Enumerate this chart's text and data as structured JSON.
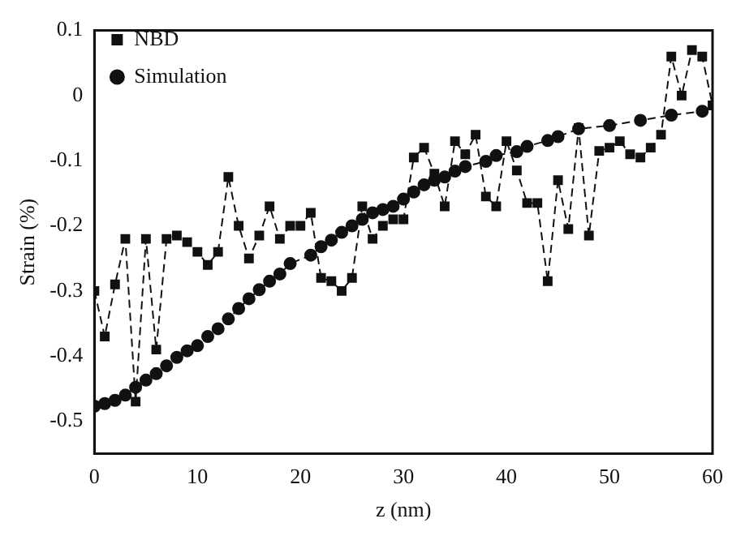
{
  "chart_data": {
    "type": "line",
    "xlabel": "z (nm)",
    "ylabel": "Strain (%)",
    "xlim": [
      0,
      60
    ],
    "xticks": [
      0,
      10,
      20,
      30,
      40,
      50,
      60
    ],
    "ylim": [
      -0.55,
      0.1
    ],
    "yticks": [
      -0.5,
      -0.4,
      -0.3,
      -0.2,
      -0.1,
      0,
      0.1
    ],
    "grid": false,
    "legend": "top left",
    "series": [
      {
        "name": "NBD",
        "color": "#111111",
        "marker": "square",
        "line_style": "dashed",
        "x": [
          0,
          1,
          2,
          3,
          4,
          5,
          6,
          7,
          8,
          9,
          10,
          11,
          12,
          13,
          14,
          15,
          16,
          17,
          18,
          19,
          20,
          21,
          22,
          23,
          24,
          25,
          26,
          27,
          28,
          29,
          30,
          31,
          32,
          33,
          34,
          35,
          36,
          37,
          38,
          39,
          40,
          41,
          42,
          43,
          44,
          45,
          46,
          47,
          48,
          49,
          50,
          51,
          52,
          53,
          54,
          55,
          56,
          57,
          58,
          59,
          60
        ],
        "values": [
          -0.3,
          -0.37,
          -0.29,
          -0.22,
          -0.47,
          -0.22,
          -0.39,
          -0.22,
          -0.215,
          -0.225,
          -0.24,
          -0.26,
          -0.24,
          -0.125,
          -0.2,
          -0.25,
          -0.215,
          -0.17,
          -0.22,
          -0.2,
          -0.2,
          -0.18,
          -0.28,
          -0.285,
          -0.3,
          -0.28,
          -0.17,
          -0.22,
          -0.2,
          -0.19,
          -0.19,
          -0.095,
          -0.08,
          -0.12,
          -0.17,
          -0.07,
          -0.09,
          -0.06,
          -0.155,
          -0.17,
          -0.07,
          -0.115,
          -0.165,
          -0.165,
          -0.285,
          -0.13,
          -0.205,
          -0.05,
          -0.215,
          -0.085,
          -0.08,
          -0.07,
          -0.09,
          -0.095,
          -0.08,
          -0.06,
          0.06,
          0,
          0.07,
          0.06,
          -0.015
        ]
      },
      {
        "name": "Simulation",
        "color": "#111111",
        "marker": "circle",
        "line_style": "dashed",
        "x": [
          0,
          1,
          2,
          3,
          4,
          5,
          6,
          7,
          8,
          9,
          10,
          11,
          12,
          13,
          14,
          15,
          16,
          17,
          18,
          19,
          21,
          22,
          23,
          24,
          25,
          26,
          27,
          28,
          29,
          30,
          31,
          32,
          33,
          34,
          35,
          36,
          38,
          39,
          41,
          42,
          44,
          45,
          47,
          50,
          53,
          56,
          59
        ],
        "values": [
          -0.477,
          -0.473,
          -0.468,
          -0.46,
          -0.448,
          -0.437,
          -0.427,
          -0.415,
          -0.402,
          -0.392,
          -0.384,
          -0.37,
          -0.358,
          -0.343,
          -0.327,
          -0.312,
          -0.298,
          -0.285,
          -0.274,
          -0.258,
          -0.245,
          -0.232,
          -0.222,
          -0.21,
          -0.2,
          -0.19,
          -0.18,
          -0.175,
          -0.17,
          -0.159,
          -0.148,
          -0.137,
          -0.13,
          -0.125,
          -0.116,
          -0.109,
          -0.101,
          -0.092,
          -0.086,
          -0.078,
          -0.069,
          -0.063,
          -0.051,
          -0.046,
          -0.038,
          -0.03,
          -0.024
        ]
      }
    ]
  }
}
